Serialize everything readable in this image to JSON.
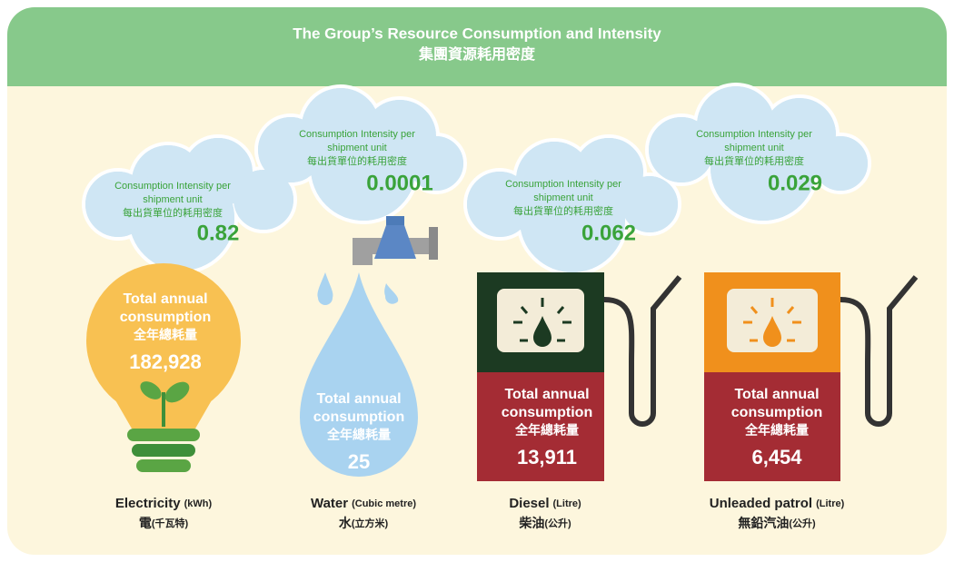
{
  "header": {
    "title": "The Group’s Resource Consumption and Intensity",
    "subtitle": "集團資源耗用密度"
  },
  "items": [
    {
      "intensity_label": [
        "Consumption Intensity per",
        "shipment unit",
        "每出貨單位的耗用密度"
      ],
      "intensity_value": "0.82",
      "total_label": [
        "Total annual",
        "consumption",
        "全年總耗量"
      ],
      "total_value": "182,928",
      "name": "Electricity",
      "unit": "(kWh)",
      "name_zh": "電",
      "unit_zh": "(千瓦特)"
    },
    {
      "intensity_label": [
        "Consumption Intensity per",
        "shipment unit",
        "每出貨單位的耗用密度"
      ],
      "intensity_value": "0.0001",
      "total_label": [
        "Total annual",
        "consumption",
        "全年總耗量"
      ],
      "total_value": "25",
      "name": "Water",
      "unit": "(Cubic metre)",
      "name_zh": "水",
      "unit_zh": "(立方米)"
    },
    {
      "intensity_label": [
        "Consumption Intensity per",
        "shipment unit",
        "每出貨單位的耗用密度"
      ],
      "intensity_value": "0.062",
      "total_label": [
        "Total annual",
        "consumption",
        "全年總耗量"
      ],
      "total_value": "13,911",
      "name": "Diesel",
      "unit": "(Litre)",
      "name_zh": "柴油",
      "unit_zh": "(公升)"
    },
    {
      "intensity_label": [
        "Consumption Intensity per",
        "shipment unit",
        "每出貨單位的耗用密度"
      ],
      "intensity_value": "0.029",
      "total_label": [
        "Total annual",
        "consumption",
        "全年總耗量"
      ],
      "total_value": "6,454",
      "name": "Unleaded patrol",
      "unit": "(Litre)",
      "name_zh": "無鉛汽油",
      "unit_zh": "(公升)"
    }
  ]
}
